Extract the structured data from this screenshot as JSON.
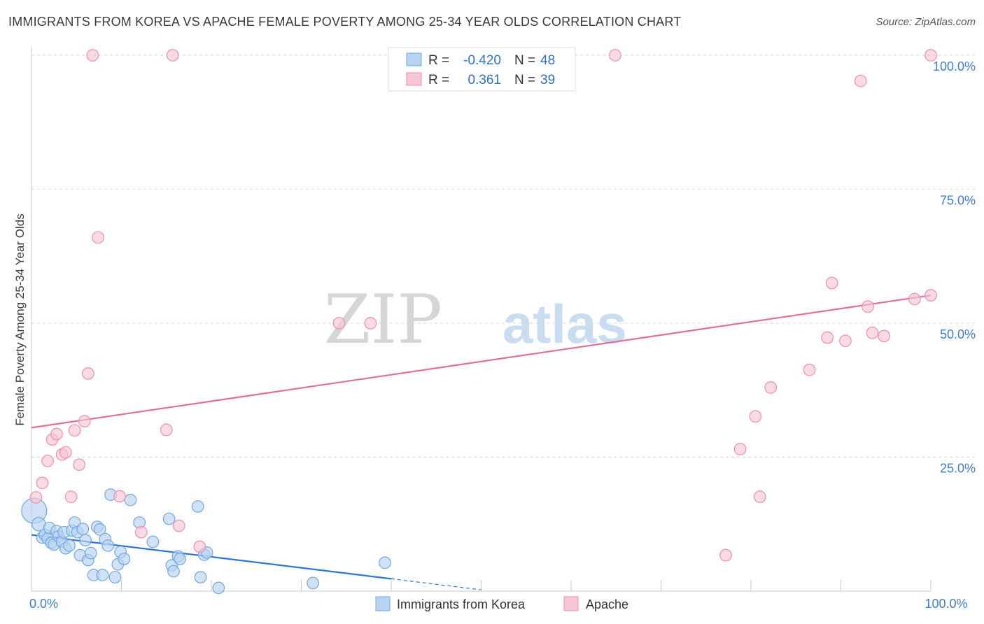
{
  "chart_data": {
    "type": "scatter",
    "title": "IMMIGRANTS FROM KOREA VS APACHE FEMALE POVERTY AMONG 25-34 YEAR OLDS CORRELATION CHART",
    "source": "Source: ZipAtlas.com",
    "xlabel": "",
    "ylabel": "Female Poverty Among 25-34 Year Olds",
    "xlim": [
      0,
      100
    ],
    "ylim": [
      0,
      100
    ],
    "x_tick_labels": [
      {
        "value": 0,
        "label": "0.0%"
      },
      {
        "value": 100,
        "label": "100.0%"
      }
    ],
    "y_tick_labels": [
      {
        "value": 25,
        "label": "25.0%"
      },
      {
        "value": 50,
        "label": "50.0%"
      },
      {
        "value": 75,
        "label": "75.0%"
      },
      {
        "value": 100,
        "label": "100.0%"
      }
    ],
    "grid": true,
    "watermark": {
      "zip": "ZIP",
      "atlas": "atlas"
    },
    "legend_stats": [
      {
        "series": "Immigrants from Korea",
        "r_label": "R =",
        "r_value": "-0.420",
        "n_label": "N =",
        "n_value": "48",
        "color": "#6fa8e0",
        "fill": "#b9d3f2"
      },
      {
        "series": "Apache",
        "r_label": "R =",
        "r_value": "0.361",
        "n_label": "N =",
        "n_value": "39",
        "color": "#ef8fb0",
        "fill": "#f7c6d6"
      }
    ],
    "series": [
      {
        "name": "Immigrants from Korea",
        "color": "#6fa8e0",
        "fill": "#b9d3f2",
        "trend_color": "#2f75d6",
        "trend": {
          "x0": 0,
          "y0": 10.5,
          "x1": 40,
          "y1": 2.3,
          "dash_to_x": 50
        },
        "points": [
          [
            0.3,
            15.0,
            26
          ],
          [
            0.8,
            12.5,
            14
          ],
          [
            1.2,
            10.0,
            12
          ],
          [
            1.5,
            10.5,
            12
          ],
          [
            1.8,
            9.8,
            12
          ],
          [
            2.0,
            11.8,
            12
          ],
          [
            2.2,
            9.0,
            12
          ],
          [
            2.5,
            8.7,
            12
          ],
          [
            2.8,
            11.2,
            12
          ],
          [
            3.0,
            10.2,
            12
          ],
          [
            3.4,
            9.2,
            12
          ],
          [
            3.6,
            11.0,
            12
          ],
          [
            3.8,
            8.0,
            12
          ],
          [
            4.2,
            8.5,
            12
          ],
          [
            4.5,
            11.3,
            12
          ],
          [
            4.8,
            12.8,
            12
          ],
          [
            5.1,
            11.0,
            12
          ],
          [
            5.4,
            6.7,
            12
          ],
          [
            5.7,
            11.6,
            12
          ],
          [
            6.0,
            9.5,
            12
          ],
          [
            6.3,
            5.8,
            12
          ],
          [
            6.6,
            7.1,
            12
          ],
          [
            6.9,
            3.0,
            12
          ],
          [
            7.3,
            12.0,
            12
          ],
          [
            7.6,
            11.5,
            12
          ],
          [
            7.9,
            3.0,
            12
          ],
          [
            8.2,
            9.7,
            12
          ],
          [
            8.5,
            8.5,
            12
          ],
          [
            8.8,
            18.0,
            12
          ],
          [
            9.3,
            2.6,
            12
          ],
          [
            9.6,
            5.0,
            12
          ],
          [
            9.9,
            7.3,
            12
          ],
          [
            10.3,
            6.0,
            12
          ],
          [
            11.0,
            17.0,
            12
          ],
          [
            12.0,
            12.8,
            12
          ],
          [
            13.5,
            9.2,
            12
          ],
          [
            15.3,
            13.5,
            12
          ],
          [
            15.6,
            4.8,
            12
          ],
          [
            15.8,
            3.7,
            12
          ],
          [
            16.3,
            6.5,
            12
          ],
          [
            16.5,
            6.0,
            12
          ],
          [
            18.5,
            15.8,
            12
          ],
          [
            18.8,
            2.6,
            12
          ],
          [
            19.2,
            6.8,
            12
          ],
          [
            19.5,
            7.2,
            12
          ],
          [
            20.8,
            0.6,
            12
          ],
          [
            31.3,
            1.5,
            12
          ],
          [
            39.3,
            5.3,
            12
          ]
        ]
      },
      {
        "name": "Apache",
        "color": "#ef8fb0",
        "fill": "#f7c6d6",
        "trend_color": "#e07098",
        "trend": {
          "x0": 0,
          "y0": 30.5,
          "x1": 100,
          "y1": 55.2
        },
        "points": [
          [
            0.5,
            17.5,
            12
          ],
          [
            1.2,
            20.2,
            12
          ],
          [
            1.8,
            24.3,
            12
          ],
          [
            2.3,
            28.3,
            12
          ],
          [
            2.8,
            29.3,
            12
          ],
          [
            3.4,
            25.5,
            12
          ],
          [
            3.8,
            25.9,
            12
          ],
          [
            4.4,
            17.6,
            12
          ],
          [
            4.8,
            30.0,
            12
          ],
          [
            5.3,
            23.6,
            12
          ],
          [
            5.9,
            31.7,
            12
          ],
          [
            6.3,
            40.6,
            12
          ],
          [
            6.8,
            100.0,
            12
          ],
          [
            7.4,
            66.0,
            12
          ],
          [
            9.8,
            17.7,
            12
          ],
          [
            12.2,
            11.0,
            12
          ],
          [
            15.0,
            30.1,
            12
          ],
          [
            15.7,
            100.0,
            12
          ],
          [
            16.4,
            12.2,
            12
          ],
          [
            18.7,
            8.3,
            12
          ],
          [
            34.2,
            50.0,
            12
          ],
          [
            37.7,
            50.0,
            12
          ],
          [
            64.9,
            100.0,
            12
          ],
          [
            77.2,
            6.7,
            12
          ],
          [
            78.8,
            26.5,
            12
          ],
          [
            80.5,
            32.6,
            12
          ],
          [
            81.0,
            17.6,
            12
          ],
          [
            82.2,
            38.0,
            12
          ],
          [
            86.5,
            41.3,
            12
          ],
          [
            88.5,
            47.3,
            12
          ],
          [
            89.0,
            57.5,
            12
          ],
          [
            90.5,
            46.7,
            12
          ],
          [
            92.2,
            95.2,
            12
          ],
          [
            93.0,
            53.1,
            12
          ],
          [
            93.5,
            48.2,
            12
          ],
          [
            94.8,
            47.6,
            12
          ],
          [
            98.2,
            54.5,
            12
          ],
          [
            100.0,
            100.0,
            12
          ],
          [
            100.0,
            55.2,
            12
          ]
        ]
      }
    ]
  }
}
